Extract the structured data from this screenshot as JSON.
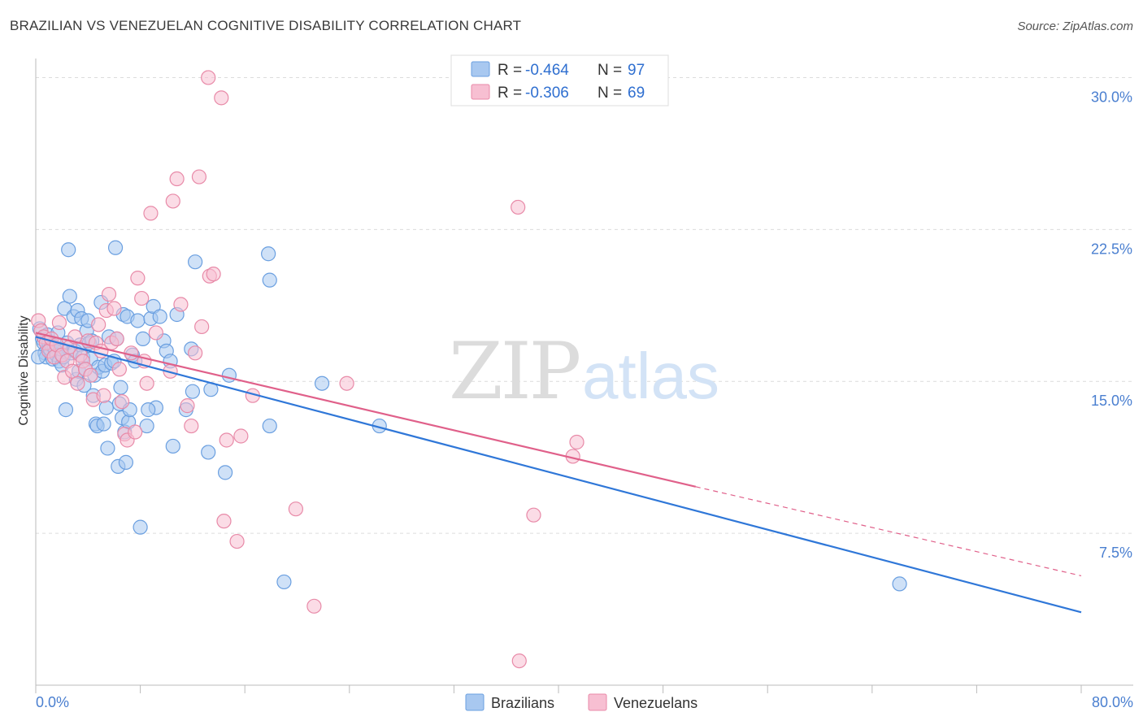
{
  "title": "BRAZILIAN VS VENEZUELAN COGNITIVE DISABILITY CORRELATION CHART",
  "source": "Source: ZipAtlas.com",
  "watermark": {
    "zip": "ZIP",
    "atlas": "atlas"
  },
  "legend": {
    "rows": [
      {
        "r_label": "R = ",
        "r_value": "-0.464",
        "n_label": "N = ",
        "n_value": "97",
        "color": "#a8c8f0",
        "stroke": "#6a9fe0"
      },
      {
        "r_label": "R = ",
        "r_value": "-0.306",
        "n_label": "N = ",
        "n_value": "69",
        "color": "#f7bfd2",
        "stroke": "#e88aa8"
      }
    ]
  },
  "bottom_legend": [
    {
      "label": "Brazilians",
      "color": "#a8c8f0",
      "stroke": "#6a9fe0"
    },
    {
      "label": "Venezuelans",
      "color": "#f7bfd2",
      "stroke": "#e88aa8"
    }
  ],
  "chart_data": {
    "type": "scatter",
    "title": "BRAZILIAN VS VENEZUELAN COGNITIVE DISABILITY CORRELATION CHART",
    "xlabel": "",
    "ylabel": "Cognitive Disability",
    "xlim": [
      0,
      80
    ],
    "ylim": [
      0,
      30.7
    ],
    "x_tick_labels": [
      "0.0%",
      "80.0%"
    ],
    "y_ticks": [
      7.5,
      15.0,
      22.5,
      30.0
    ],
    "y_tick_labels": [
      "7.5%",
      "15.0%",
      "22.5%",
      "30.0%"
    ],
    "grid": true,
    "legend_position": "top-center",
    "series": [
      {
        "name": "Brazilians",
        "color": "#6a9fe0",
        "fill": "#a8c8f0",
        "trend": {
          "x": [
            0,
            80
          ],
          "y": [
            17.2,
            3.6
          ],
          "color": "#2f77d8"
        },
        "points": [
          [
            0.3,
            17.6
          ],
          [
            0.5,
            17.1
          ],
          [
            0.6,
            16.9
          ],
          [
            0.7,
            16.4
          ],
          [
            0.8,
            16.2
          ],
          [
            0.9,
            17.3
          ],
          [
            1.0,
            16.9
          ],
          [
            1.1,
            16.6
          ],
          [
            1.2,
            16.8
          ],
          [
            1.3,
            16.1
          ],
          [
            1.4,
            16.7
          ],
          [
            1.5,
            16.5
          ],
          [
            1.6,
            16.3
          ],
          [
            1.7,
            17.4
          ],
          [
            1.8,
            16.0
          ],
          [
            2.0,
            15.8
          ],
          [
            2.1,
            16.2
          ],
          [
            2.2,
            18.6
          ],
          [
            2.4,
            16.9
          ],
          [
            2.5,
            21.5
          ],
          [
            2.6,
            19.2
          ],
          [
            2.7,
            16.4
          ],
          [
            2.9,
            18.2
          ],
          [
            3.0,
            16.5
          ],
          [
            3.1,
            15.1
          ],
          [
            3.2,
            18.5
          ],
          [
            3.3,
            15.5
          ],
          [
            3.4,
            16.8
          ],
          [
            3.5,
            18.1
          ],
          [
            3.6,
            16.2
          ],
          [
            3.7,
            14.8
          ],
          [
            3.9,
            17.5
          ],
          [
            4.0,
            18.0
          ],
          [
            4.1,
            16.9
          ],
          [
            4.2,
            16.1
          ],
          [
            4.3,
            17.0
          ],
          [
            4.4,
            14.3
          ],
          [
            4.5,
            15.3
          ],
          [
            4.6,
            12.9
          ],
          [
            4.7,
            12.8
          ],
          [
            4.8,
            15.7
          ],
          [
            5.0,
            18.9
          ],
          [
            5.1,
            15.5
          ],
          [
            5.3,
            15.8
          ],
          [
            5.4,
            13.7
          ],
          [
            5.5,
            11.7
          ],
          [
            5.6,
            17.2
          ],
          [
            5.8,
            15.9
          ],
          [
            6.0,
            16.0
          ],
          [
            6.1,
            21.6
          ],
          [
            6.2,
            17.1
          ],
          [
            6.3,
            10.8
          ],
          [
            6.4,
            13.9
          ],
          [
            6.5,
            14.7
          ],
          [
            6.6,
            13.2
          ],
          [
            6.7,
            18.3
          ],
          [
            6.8,
            12.5
          ],
          [
            6.9,
            11.0
          ],
          [
            7.0,
            18.2
          ],
          [
            7.1,
            13.0
          ],
          [
            7.2,
            13.6
          ],
          [
            7.4,
            16.3
          ],
          [
            7.6,
            16.0
          ],
          [
            7.8,
            18.0
          ],
          [
            8.0,
            7.8
          ],
          [
            8.2,
            17.1
          ],
          [
            8.5,
            12.8
          ],
          [
            8.8,
            18.1
          ],
          [
            9.0,
            18.7
          ],
          [
            9.2,
            13.7
          ],
          [
            9.5,
            18.2
          ],
          [
            9.8,
            17.0
          ],
          [
            10.0,
            16.5
          ],
          [
            10.3,
            16.0
          ],
          [
            10.5,
            11.8
          ],
          [
            10.8,
            18.3
          ],
          [
            11.5,
            13.6
          ],
          [
            11.9,
            16.6
          ],
          [
            12.0,
            14.5
          ],
          [
            12.2,
            20.9
          ],
          [
            13.2,
            11.5
          ],
          [
            13.4,
            14.6
          ],
          [
            14.5,
            10.5
          ],
          [
            14.8,
            15.3
          ],
          [
            17.8,
            21.3
          ],
          [
            17.9,
            20.0
          ],
          [
            17.9,
            12.8
          ],
          [
            19.0,
            5.1
          ],
          [
            21.9,
            14.9
          ],
          [
            26.3,
            12.8
          ],
          [
            66.1,
            5.0
          ],
          [
            0.2,
            16.2
          ],
          [
            1.9,
            16.6
          ],
          [
            2.3,
            13.6
          ],
          [
            3.8,
            15.6
          ],
          [
            5.2,
            12.9
          ],
          [
            8.6,
            13.6
          ]
        ]
      },
      {
        "name": "Venezuelans",
        "color": "#e88aa8",
        "fill": "#f7bfd2",
        "trend": {
          "x": [
            0,
            50.5
          ],
          "y": [
            17.4,
            9.8
          ],
          "dashed_to": [
            80,
            5.4
          ],
          "color": "#e0608a"
        },
        "points": [
          [
            0.2,
            18.0
          ],
          [
            0.4,
            17.5
          ],
          [
            0.6,
            17.2
          ],
          [
            0.8,
            16.9
          ],
          [
            1.0,
            16.5
          ],
          [
            1.2,
            17.1
          ],
          [
            1.4,
            16.2
          ],
          [
            1.6,
            16.8
          ],
          [
            1.8,
            17.9
          ],
          [
            2.0,
            16.3
          ],
          [
            2.2,
            15.2
          ],
          [
            2.4,
            16.0
          ],
          [
            2.6,
            16.7
          ],
          [
            2.8,
            15.5
          ],
          [
            3.0,
            17.2
          ],
          [
            3.2,
            14.9
          ],
          [
            3.4,
            16.3
          ],
          [
            3.6,
            16.0
          ],
          [
            3.8,
            15.6
          ],
          [
            4.0,
            17.0
          ],
          [
            4.2,
            15.3
          ],
          [
            4.4,
            14.1
          ],
          [
            4.6,
            16.9
          ],
          [
            4.8,
            17.8
          ],
          [
            5.0,
            16.5
          ],
          [
            5.2,
            14.3
          ],
          [
            5.4,
            18.5
          ],
          [
            5.6,
            19.3
          ],
          [
            5.8,
            16.9
          ],
          [
            6.0,
            18.6
          ],
          [
            6.2,
            17.1
          ],
          [
            6.4,
            15.6
          ],
          [
            6.6,
            14.0
          ],
          [
            6.8,
            12.4
          ],
          [
            7.0,
            12.1
          ],
          [
            7.3,
            16.4
          ],
          [
            7.6,
            12.5
          ],
          [
            7.8,
            20.1
          ],
          [
            8.1,
            19.1
          ],
          [
            8.3,
            16.0
          ],
          [
            8.5,
            14.9
          ],
          [
            8.8,
            23.3
          ],
          [
            9.2,
            17.4
          ],
          [
            10.3,
            15.5
          ],
          [
            10.5,
            23.9
          ],
          [
            10.8,
            25.0
          ],
          [
            11.1,
            18.8
          ],
          [
            11.6,
            13.8
          ],
          [
            11.9,
            12.8
          ],
          [
            12.2,
            16.4
          ],
          [
            12.5,
            25.1
          ],
          [
            12.7,
            17.7
          ],
          [
            13.2,
            30.0
          ],
          [
            13.3,
            20.2
          ],
          [
            13.6,
            20.3
          ],
          [
            14.2,
            29.0
          ],
          [
            14.4,
            8.1
          ],
          [
            14.6,
            12.1
          ],
          [
            15.4,
            7.1
          ],
          [
            15.7,
            12.3
          ],
          [
            16.6,
            14.3
          ],
          [
            19.9,
            8.7
          ],
          [
            21.3,
            3.9
          ],
          [
            23.8,
            14.9
          ],
          [
            36.9,
            23.6
          ],
          [
            37.0,
            1.2
          ],
          [
            38.1,
            8.4
          ],
          [
            41.1,
            11.3
          ],
          [
            41.4,
            12.0
          ]
        ]
      }
    ]
  }
}
